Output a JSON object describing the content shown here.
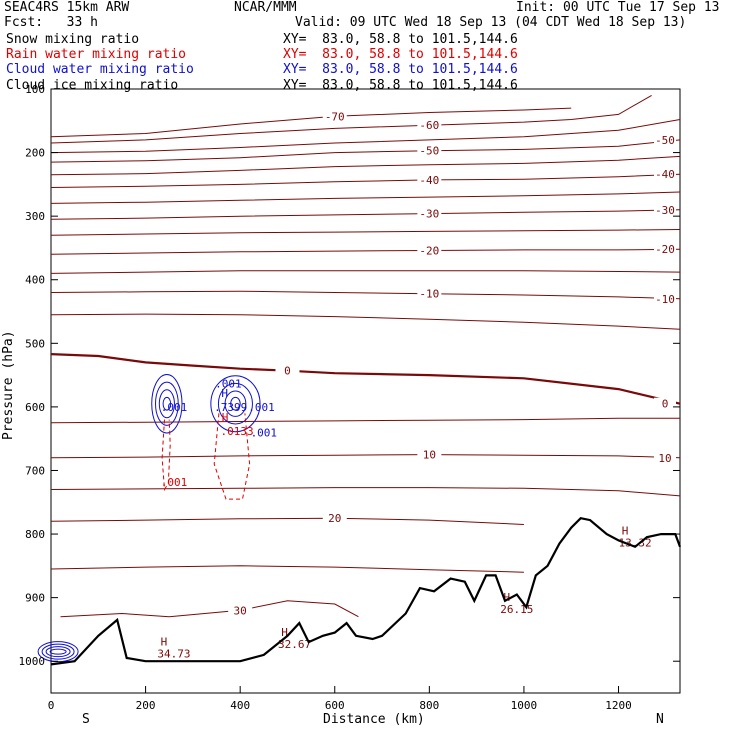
{
  "header": {
    "title_left": "SEAC4RS 15km ARW",
    "forecast": "Fcst:   33 h",
    "center": "NCAR/MMM",
    "init": "Init: 00 UTC Tue 17 Sep 13",
    "valid": "Valid: 09 UTC Wed 18 Sep 13 (04 CDT Wed 18 Sep 13)"
  },
  "fields": [
    {
      "name": "Snow mixing ratio",
      "xy": "XY=  83.0, 58.8 to 101.5,144.6",
      "color": "#000000"
    },
    {
      "name": "Rain water mixing ratio",
      "xy": "XY=  83.0, 58.8 to 101.5,144.6",
      "color": "#e00000"
    },
    {
      "name": "Cloud water mixing ratio",
      "xy": "XY=  83.0, 58.8 to 101.5,144.6",
      "color": "#1010d0"
    },
    {
      "name": "Cloud ice mixing ratio",
      "xy": "XY=  83.0, 58.8 to 101.5,144.6",
      "color": "#000000"
    }
  ],
  "colors": {
    "temperature": "#7a0a0a",
    "rain": "#e00000",
    "cloud": "#1010d0",
    "terrain": "#000000"
  },
  "chart_data": {
    "type": "cross-section",
    "xlabel": "Distance (km)",
    "ylabel": "Pressure (hPa)",
    "xlim": [
      0,
      1330
    ],
    "ylim": [
      1050,
      100
    ],
    "x_ticks": [
      0,
      200,
      400,
      600,
      800,
      1000,
      1200
    ],
    "y_ticks": [
      100,
      200,
      300,
      400,
      500,
      600,
      700,
      800,
      900,
      1000
    ],
    "x_tick_labels": [
      "0",
      "200",
      "400",
      "600",
      "800",
      "1000",
      "1200"
    ],
    "y_tick_labels": [
      "100",
      "200",
      "300",
      "400",
      "500",
      "600",
      "700",
      "800",
      "900",
      "1000"
    ],
    "direction_left": "S",
    "direction_right": "N",
    "temperature_contours": [
      {
        "level": -70,
        "label": "-70",
        "points": [
          [
            0,
            175
          ],
          [
            200,
            170
          ],
          [
            400,
            155
          ],
          [
            600,
            143
          ],
          [
            800,
            137
          ],
          [
            1000,
            133
          ],
          [
            1100,
            130
          ]
        ]
      },
      {
        "level": -60,
        "label": "-60",
        "points": [
          [
            0,
            185
          ],
          [
            200,
            180
          ],
          [
            400,
            170
          ],
          [
            600,
            162
          ],
          [
            800,
            157
          ],
          [
            1000,
            152
          ],
          [
            1100,
            148
          ],
          [
            1200,
            140
          ],
          [
            1270,
            110
          ]
        ]
      },
      {
        "level": -55,
        "label": "",
        "points": [
          [
            0,
            200
          ],
          [
            200,
            198
          ],
          [
            400,
            192
          ],
          [
            600,
            185
          ],
          [
            800,
            180
          ],
          [
            1000,
            175
          ],
          [
            1200,
            165
          ],
          [
            1330,
            148
          ]
        ]
      },
      {
        "level": -50,
        "label": "-50",
        "points": [
          [
            0,
            215
          ],
          [
            200,
            213
          ],
          [
            400,
            208
          ],
          [
            600,
            200
          ],
          [
            800,
            197
          ],
          [
            1000,
            195
          ],
          [
            1200,
            190
          ],
          [
            1330,
            180
          ]
        ]
      },
      {
        "level": -45,
        "label": "",
        "points": [
          [
            0,
            235
          ],
          [
            200,
            233
          ],
          [
            400,
            228
          ],
          [
            600,
            222
          ],
          [
            800,
            219
          ],
          [
            1000,
            217
          ],
          [
            1200,
            212
          ],
          [
            1330,
            206
          ]
        ]
      },
      {
        "level": -40,
        "label": "-40",
        "points": [
          [
            0,
            255
          ],
          [
            200,
            253
          ],
          [
            400,
            250
          ],
          [
            600,
            246
          ],
          [
            800,
            243
          ],
          [
            1000,
            242
          ],
          [
            1200,
            238
          ],
          [
            1330,
            234
          ]
        ]
      },
      {
        "level": -35,
        "label": "",
        "points": [
          [
            0,
            280
          ],
          [
            200,
            278
          ],
          [
            400,
            275
          ],
          [
            600,
            272
          ],
          [
            800,
            270
          ],
          [
            1000,
            268
          ],
          [
            1200,
            265
          ],
          [
            1330,
            262
          ]
        ]
      },
      {
        "level": -30,
        "label": "-30",
        "points": [
          [
            0,
            305
          ],
          [
            200,
            303
          ],
          [
            400,
            300
          ],
          [
            600,
            298
          ],
          [
            800,
            296
          ],
          [
            1000,
            294
          ],
          [
            1200,
            292
          ],
          [
            1330,
            290
          ]
        ]
      },
      {
        "level": -25,
        "label": "",
        "points": [
          [
            0,
            330
          ],
          [
            200,
            328
          ],
          [
            400,
            326
          ],
          [
            600,
            325
          ],
          [
            800,
            324
          ],
          [
            1000,
            323
          ],
          [
            1200,
            322
          ],
          [
            1330,
            321
          ]
        ]
      },
      {
        "level": -20,
        "label": "-20",
        "points": [
          [
            0,
            360
          ],
          [
            200,
            358
          ],
          [
            400,
            356
          ],
          [
            600,
            355
          ],
          [
            800,
            354
          ],
          [
            1000,
            353
          ],
          [
            1200,
            353
          ],
          [
            1330,
            352
          ]
        ]
      },
      {
        "level": -15,
        "label": "",
        "points": [
          [
            0,
            390
          ],
          [
            200,
            388
          ],
          [
            400,
            386
          ],
          [
            600,
            386
          ],
          [
            800,
            386
          ],
          [
            1000,
            386
          ],
          [
            1200,
            387
          ],
          [
            1330,
            388
          ]
        ]
      },
      {
        "level": -10,
        "label": "-10",
        "points": [
          [
            0,
            420
          ],
          [
            200,
            419
          ],
          [
            400,
            418
          ],
          [
            600,
            420
          ],
          [
            800,
            422
          ],
          [
            1000,
            424
          ],
          [
            1200,
            427
          ],
          [
            1330,
            430
          ]
        ]
      },
      {
        "level": -5,
        "label": "",
        "points": [
          [
            0,
            455
          ],
          [
            200,
            454
          ],
          [
            400,
            455
          ],
          [
            600,
            458
          ],
          [
            800,
            462
          ],
          [
            1000,
            467
          ],
          [
            1200,
            473
          ],
          [
            1330,
            478
          ]
        ]
      },
      {
        "level": 0,
        "label": "0",
        "points": [
          [
            0,
            517
          ],
          [
            100,
            520
          ],
          [
            200,
            530
          ],
          [
            300,
            535
          ],
          [
            400,
            540
          ],
          [
            500,
            543
          ],
          [
            600,
            547
          ],
          [
            800,
            550
          ],
          [
            1000,
            555
          ],
          [
            1200,
            572
          ],
          [
            1330,
            595
          ]
        ]
      },
      {
        "level": 5,
        "label": "",
        "points": [
          [
            0,
            625
          ],
          [
            200,
            624
          ],
          [
            400,
            623
          ],
          [
            600,
            622
          ],
          [
            800,
            621
          ],
          [
            1000,
            620
          ],
          [
            1200,
            618
          ],
          [
            1330,
            618
          ]
        ]
      },
      {
        "level": 10,
        "label": "10",
        "points": [
          [
            0,
            680
          ],
          [
            200,
            679
          ],
          [
            400,
            677
          ],
          [
            600,
            676
          ],
          [
            800,
            675
          ],
          [
            1000,
            676
          ],
          [
            1200,
            677
          ],
          [
            1330,
            680
          ]
        ]
      },
      {
        "level": 15,
        "label": "",
        "points": [
          [
            0,
            730
          ],
          [
            200,
            729
          ],
          [
            400,
            728
          ],
          [
            600,
            727
          ],
          [
            800,
            727
          ],
          [
            1000,
            728
          ],
          [
            1200,
            732
          ],
          [
            1330,
            740
          ]
        ]
      },
      {
        "level": 20,
        "label": "20",
        "points": [
          [
            0,
            780
          ],
          [
            200,
            778
          ],
          [
            400,
            776
          ],
          [
            600,
            775
          ],
          [
            800,
            778
          ],
          [
            1000,
            785
          ]
        ]
      },
      {
        "level": 25,
        "label": "",
        "points": [
          [
            0,
            855
          ],
          [
            200,
            852
          ],
          [
            400,
            850
          ],
          [
            600,
            852
          ],
          [
            800,
            856
          ],
          [
            1000,
            860
          ]
        ]
      },
      {
        "level": 30,
        "label": "30",
        "points": [
          [
            20,
            930
          ],
          [
            150,
            925
          ],
          [
            250,
            930
          ],
          [
            400,
            920
          ],
          [
            500,
            905
          ],
          [
            600,
            910
          ],
          [
            650,
            930
          ]
        ]
      }
    ],
    "temperature_max_labels": [
      {
        "label": "H",
        "value": "34.73",
        "x": 260,
        "p": 985
      },
      {
        "label": "H",
        "value": "32.67",
        "x": 515,
        "p": 970
      },
      {
        "label": "H",
        "value": "26.15",
        "x": 985,
        "p": 915
      },
      {
        "label": "H",
        "value": "13.32",
        "x": 1235,
        "p": 810
      }
    ],
    "cloud_water_contours": [
      {
        "label": ".001",
        "x": 260,
        "p": 600
      },
      {
        "label": ".001",
        "x": 375,
        "p": 563
      },
      {
        "label": ".001",
        "x": 445,
        "p": 600
      },
      {
        "label": ".001",
        "x": 450,
        "p": 640
      }
    ],
    "rain_water_labels": [
      {
        "label": ".001",
        "x": 260,
        "p": 718
      },
      {
        "label": "H",
        "value": ".0133",
        "x": 385,
        "p": 635
      }
    ],
    "cloud_water_max": {
      "label": "H",
      "value": ".7399",
      "x": 380,
      "p": 597
    },
    "terrain": [
      [
        0,
        1005
      ],
      [
        50,
        1000
      ],
      [
        100,
        960
      ],
      [
        140,
        935
      ],
      [
        160,
        995
      ],
      [
        200,
        1000
      ],
      [
        300,
        1000
      ],
      [
        400,
        1000
      ],
      [
        450,
        990
      ],
      [
        500,
        960
      ],
      [
        525,
        940
      ],
      [
        545,
        970
      ],
      [
        575,
        960
      ],
      [
        600,
        955
      ],
      [
        625,
        940
      ],
      [
        645,
        960
      ],
      [
        680,
        965
      ],
      [
        700,
        960
      ],
      [
        750,
        925
      ],
      [
        780,
        885
      ],
      [
        810,
        890
      ],
      [
        845,
        870
      ],
      [
        875,
        875
      ],
      [
        895,
        905
      ],
      [
        920,
        865
      ],
      [
        940,
        865
      ],
      [
        960,
        905
      ],
      [
        985,
        895
      ],
      [
        1005,
        915
      ],
      [
        1025,
        865
      ],
      [
        1050,
        850
      ],
      [
        1075,
        815
      ],
      [
        1100,
        790
      ],
      [
        1120,
        775
      ],
      [
        1140,
        778
      ],
      [
        1175,
        800
      ],
      [
        1200,
        810
      ],
      [
        1235,
        820
      ],
      [
        1260,
        805
      ],
      [
        1290,
        800
      ],
      [
        1320,
        800
      ],
      [
        1330,
        820
      ]
    ]
  }
}
